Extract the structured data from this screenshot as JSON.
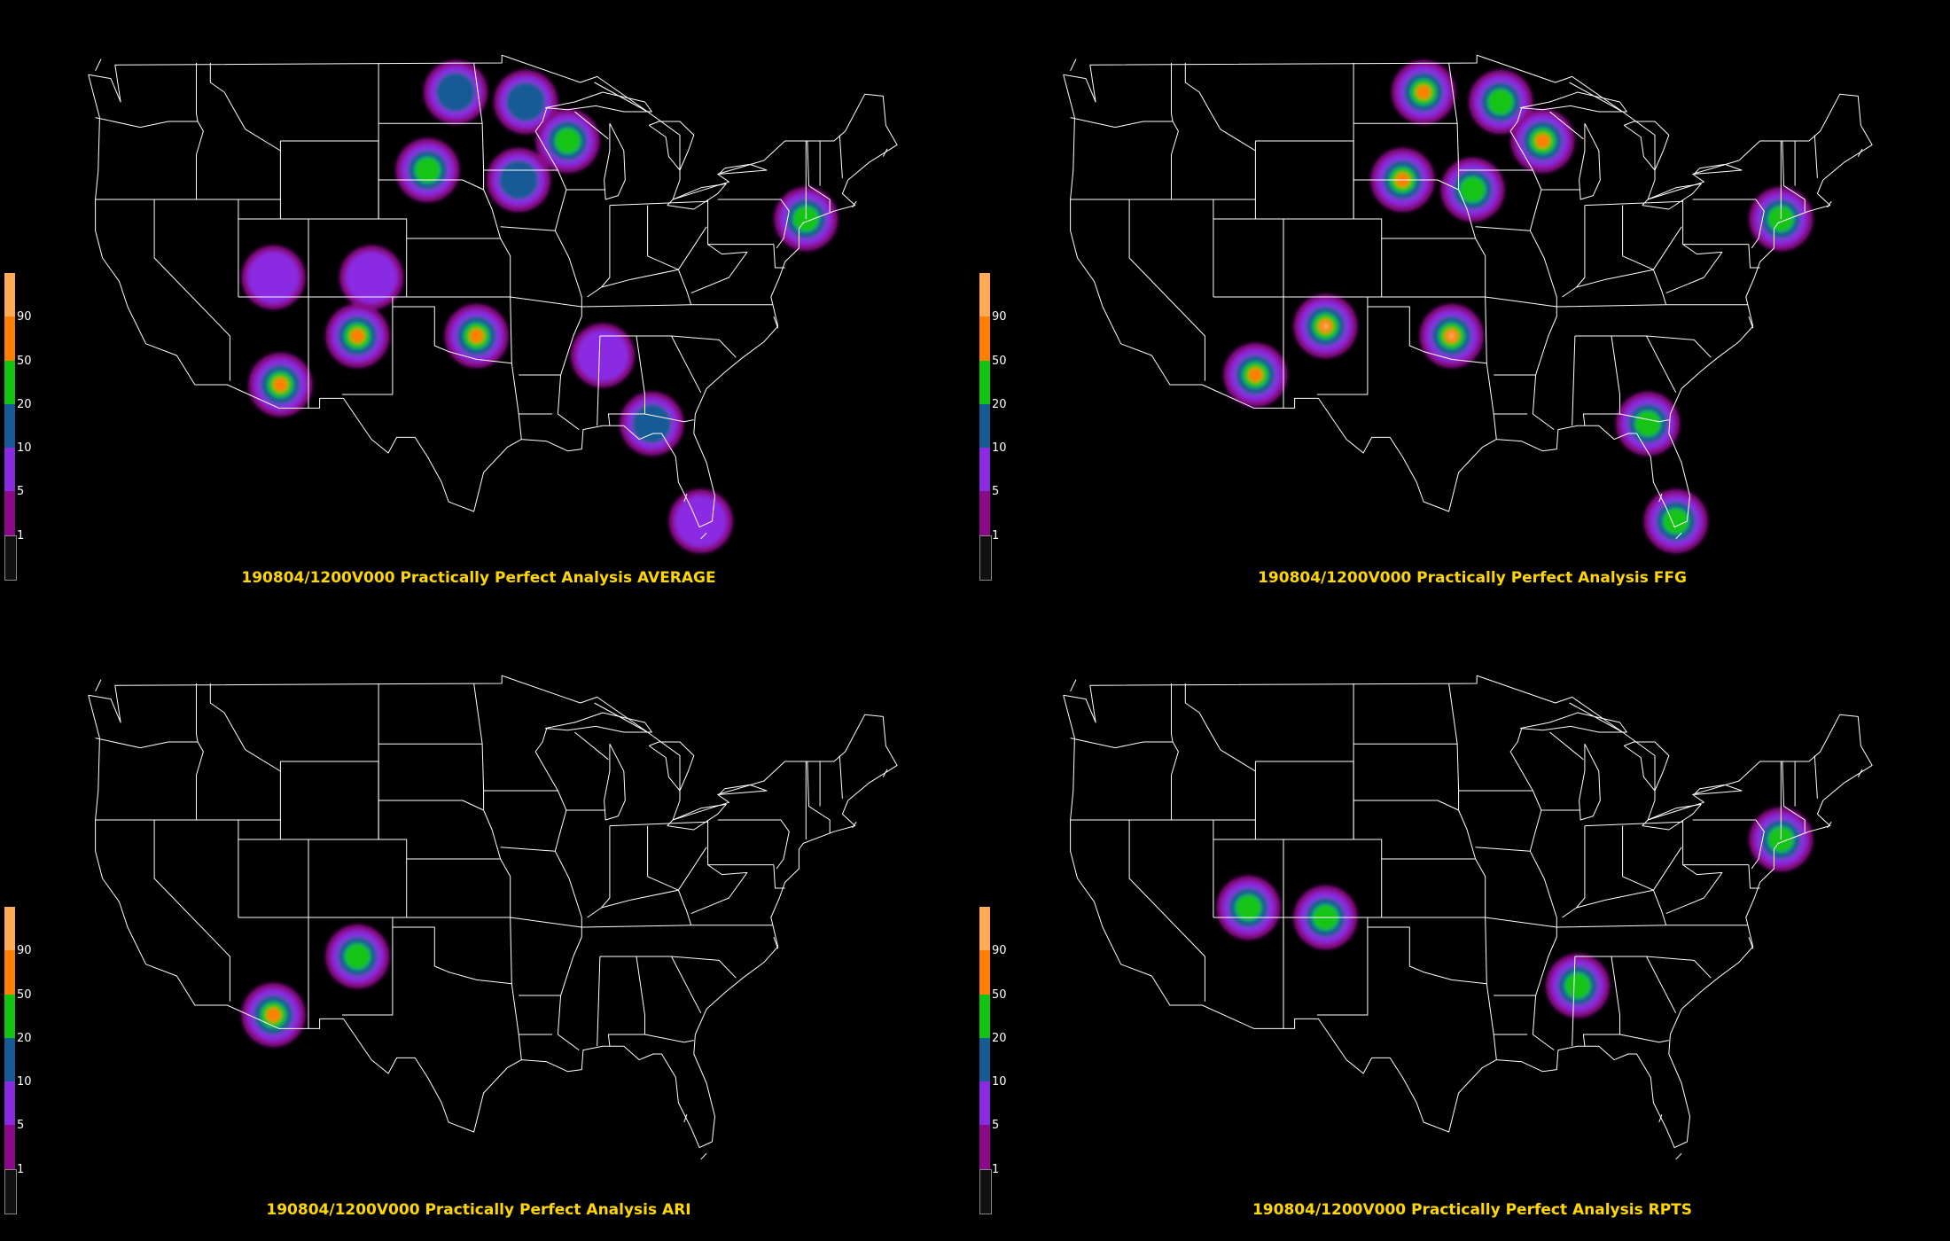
{
  "legend": {
    "colors": [
      "#111111",
      "#8a0a8a",
      "#8a2be2",
      "#165a96",
      "#13c413",
      "#ff7f00",
      "#ffaa55"
    ],
    "labels": [
      "1",
      "5",
      "10",
      "20",
      "50",
      "90"
    ]
  },
  "map_colors": {
    "background": "#000000",
    "boundaries": "#ffffff",
    "caption": "#ffd700"
  },
  "panels": [
    {
      "caption": "190804/1200V000 Practically Perfect Analysis AVERAGE",
      "blobs": [
        {
          "lon": -98.5,
          "lat": 47.5,
          "level": 2
        },
        {
          "lon": -100.5,
          "lat": 43.5,
          "level": 3
        },
        {
          "lon": -90.5,
          "lat": 45.0,
          "level": 3
        },
        {
          "lon": -93.5,
          "lat": 47.0,
          "level": 2
        },
        {
          "lon": -94.0,
          "lat": 43.0,
          "level": 2
        },
        {
          "lon": -73.5,
          "lat": 41.0,
          "level": 3
        },
        {
          "lon": -111.5,
          "lat": 38.0,
          "level": 1
        },
        {
          "lon": -104.5,
          "lat": 38.0,
          "level": 1
        },
        {
          "lon": -105.5,
          "lat": 35.0,
          "level": 4
        },
        {
          "lon": -97.0,
          "lat": 35.0,
          "level": 4
        },
        {
          "lon": -111.0,
          "lat": 32.5,
          "level": 4
        },
        {
          "lon": -88.0,
          "lat": 34.0,
          "level": 1
        },
        {
          "lon": -84.5,
          "lat": 30.5,
          "level": 2
        },
        {
          "lon": -81.0,
          "lat": 25.5,
          "level": 1
        }
      ]
    },
    {
      "caption": "190804/1200V000 Practically Perfect Analysis FFG",
      "blobs": [
        {
          "lon": -99.0,
          "lat": 47.5,
          "level": 4
        },
        {
          "lon": -100.5,
          "lat": 43.0,
          "level": 4
        },
        {
          "lon": -90.5,
          "lat": 45.0,
          "level": 4
        },
        {
          "lon": -93.5,
          "lat": 47.0,
          "level": 3
        },
        {
          "lon": -95.5,
          "lat": 42.5,
          "level": 3
        },
        {
          "lon": -73.5,
          "lat": 41.0,
          "level": 3
        },
        {
          "lon": -106.0,
          "lat": 35.5,
          "level": 5
        },
        {
          "lon": -97.0,
          "lat": 35.0,
          "level": 5
        },
        {
          "lon": -111.0,
          "lat": 33.0,
          "level": 4
        },
        {
          "lon": -83.0,
          "lat": 30.5,
          "level": 3
        },
        {
          "lon": -81.0,
          "lat": 25.5,
          "level": 3
        }
      ]
    },
    {
      "caption": "190804/1200V000 Practically Perfect Analysis ARI",
      "blobs": [
        {
          "lon": -111.5,
          "lat": 32.0,
          "level": 4
        },
        {
          "lon": -105.5,
          "lat": 35.0,
          "level": 3
        }
      ]
    },
    {
      "caption": "190804/1200V000 Practically Perfect Analysis RPTS",
      "blobs": [
        {
          "lon": -73.5,
          "lat": 41.0,
          "level": 3
        },
        {
          "lon": -111.5,
          "lat": 37.5,
          "level": 3
        },
        {
          "lon": -106.0,
          "lat": 37.0,
          "level": 3
        },
        {
          "lon": -88.0,
          "lat": 33.5,
          "level": 3
        }
      ]
    }
  ]
}
